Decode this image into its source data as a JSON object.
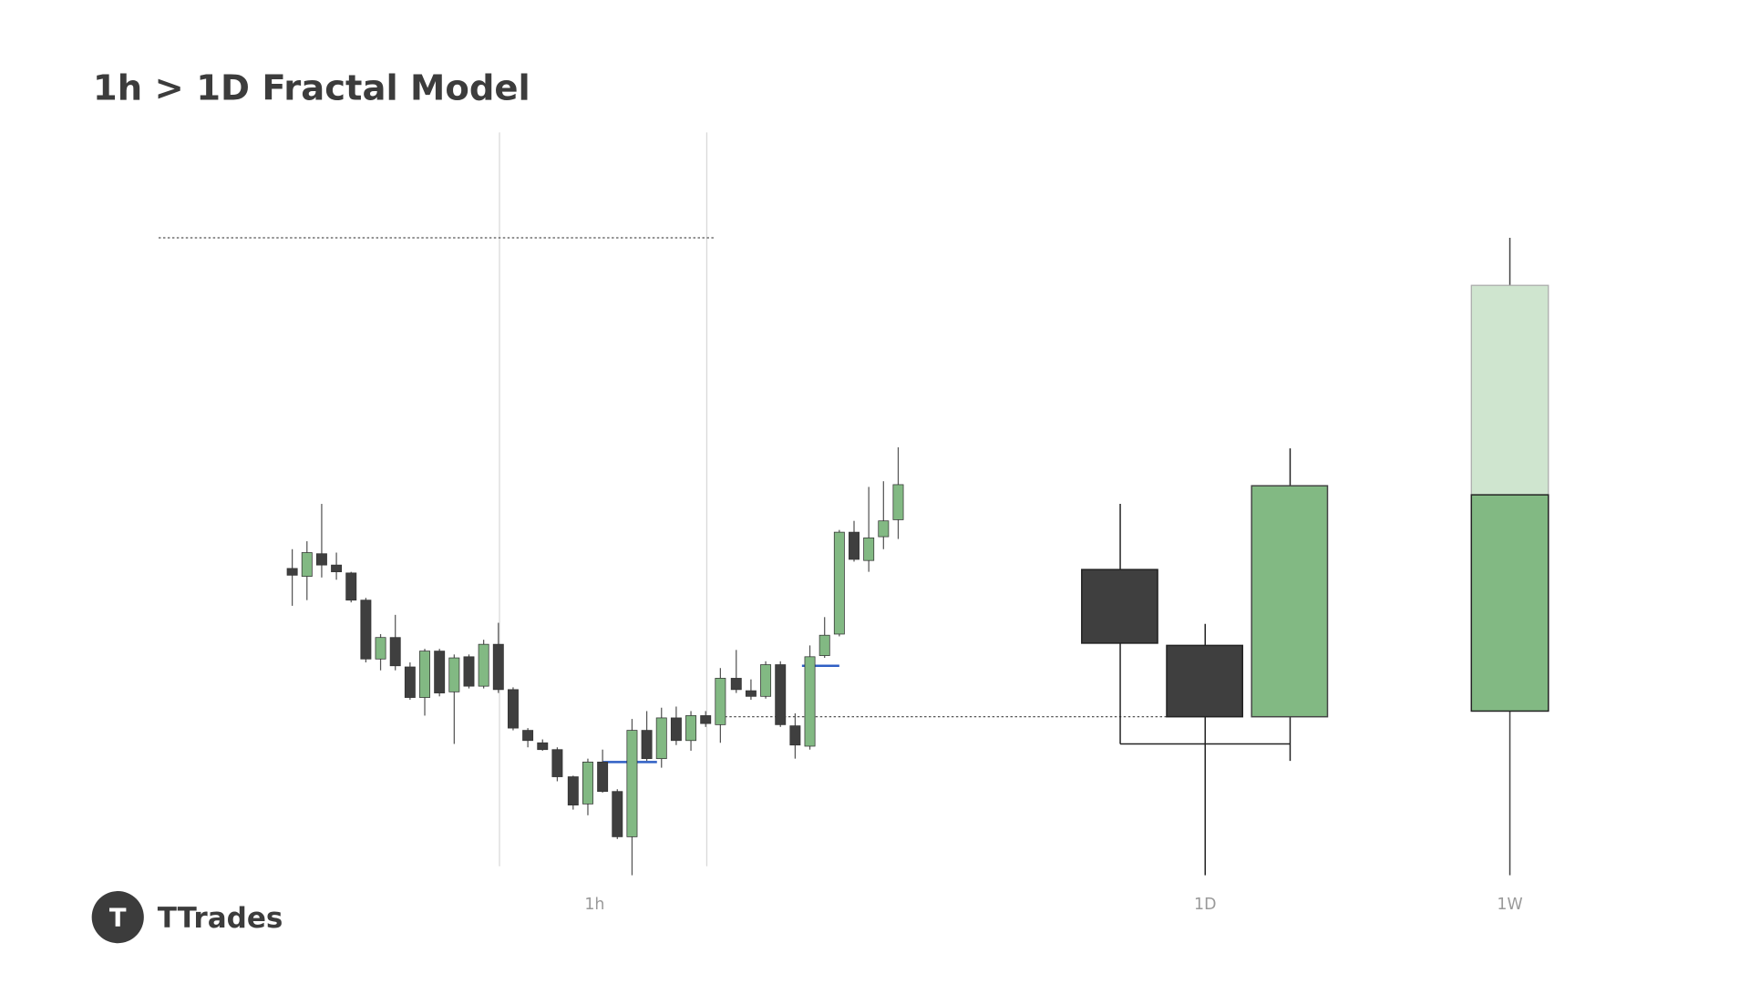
{
  "header": {
    "title": "1h > 1D Fractal Model"
  },
  "brand": {
    "name": "TTrades",
    "logo_letter": "T"
  },
  "labels": [
    "1h",
    "1D",
    "1W"
  ]
}
